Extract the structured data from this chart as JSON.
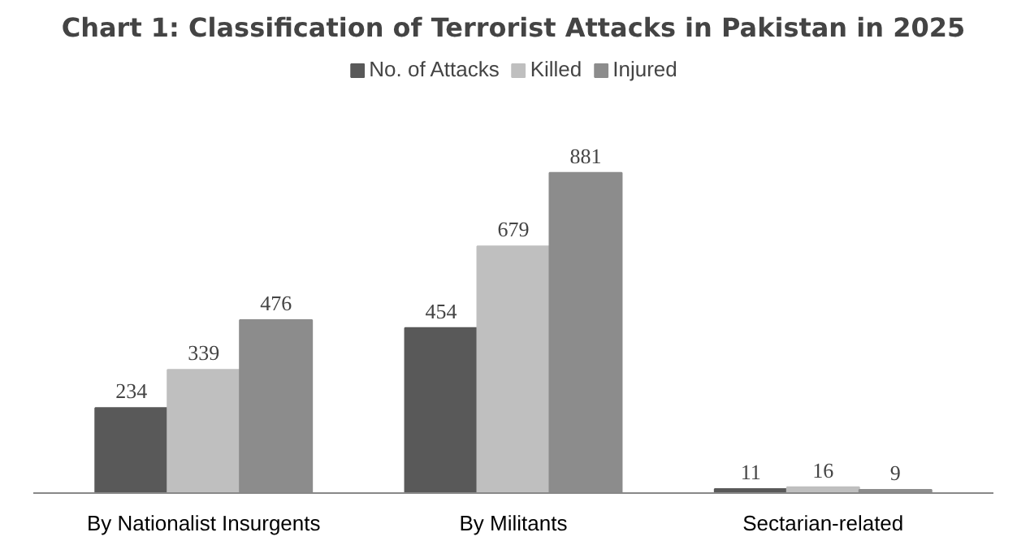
{
  "chart_data": {
    "type": "bar",
    "title": "Chart 1: Classification of Terrorist Attacks in Pakistan in 2025",
    "categories": [
      "By Nationalist Insurgents",
      "By Militants",
      "Sectarian-related"
    ],
    "series": [
      {
        "name": "No. of Attacks",
        "color": "#595959",
        "values": [
          234,
          454,
          11
        ]
      },
      {
        "name": "Killed",
        "color": "#bfbfbf",
        "values": [
          339,
          679,
          16
        ]
      },
      {
        "name": "Injured",
        "color": "#8c8c8c",
        "values": [
          476,
          881,
          9
        ]
      }
    ],
    "data_labels": true,
    "legend": "top"
  }
}
